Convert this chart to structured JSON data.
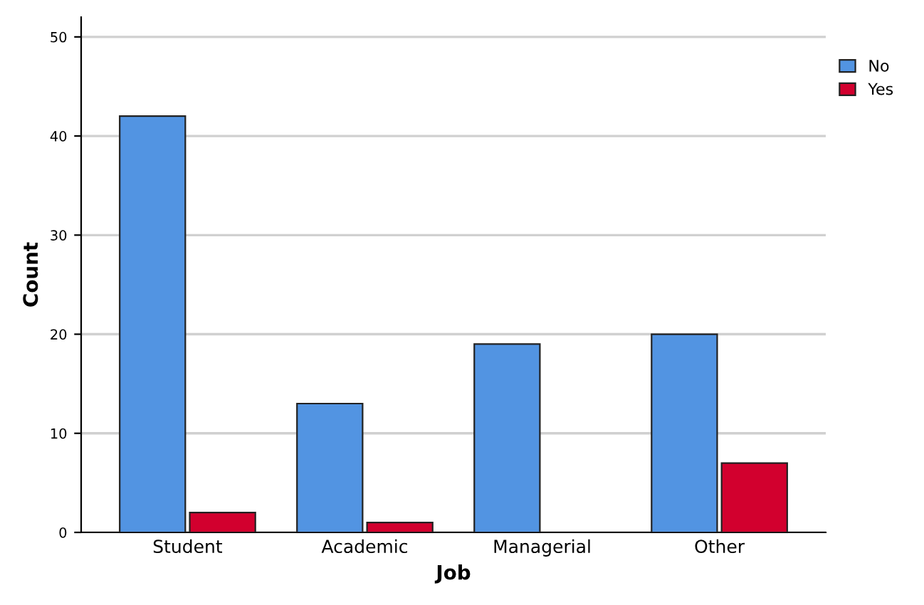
{
  "chart_data": {
    "type": "bar",
    "xlabel": "Job",
    "ylabel": "Count",
    "categories": [
      "Student",
      "Academic",
      "Managerial",
      "Other"
    ],
    "series": [
      {
        "name": "No",
        "color": "#5294e2",
        "values": [
          42,
          13,
          19,
          20
        ]
      },
      {
        "name": "Yes",
        "color": "#d2002e",
        "values": [
          2,
          1,
          null,
          7
        ]
      }
    ],
    "ylim": [
      0,
      52
    ],
    "yticks": [
      0,
      10,
      20,
      30,
      40,
      50
    ],
    "grid": "y",
    "legend": "top right"
  }
}
